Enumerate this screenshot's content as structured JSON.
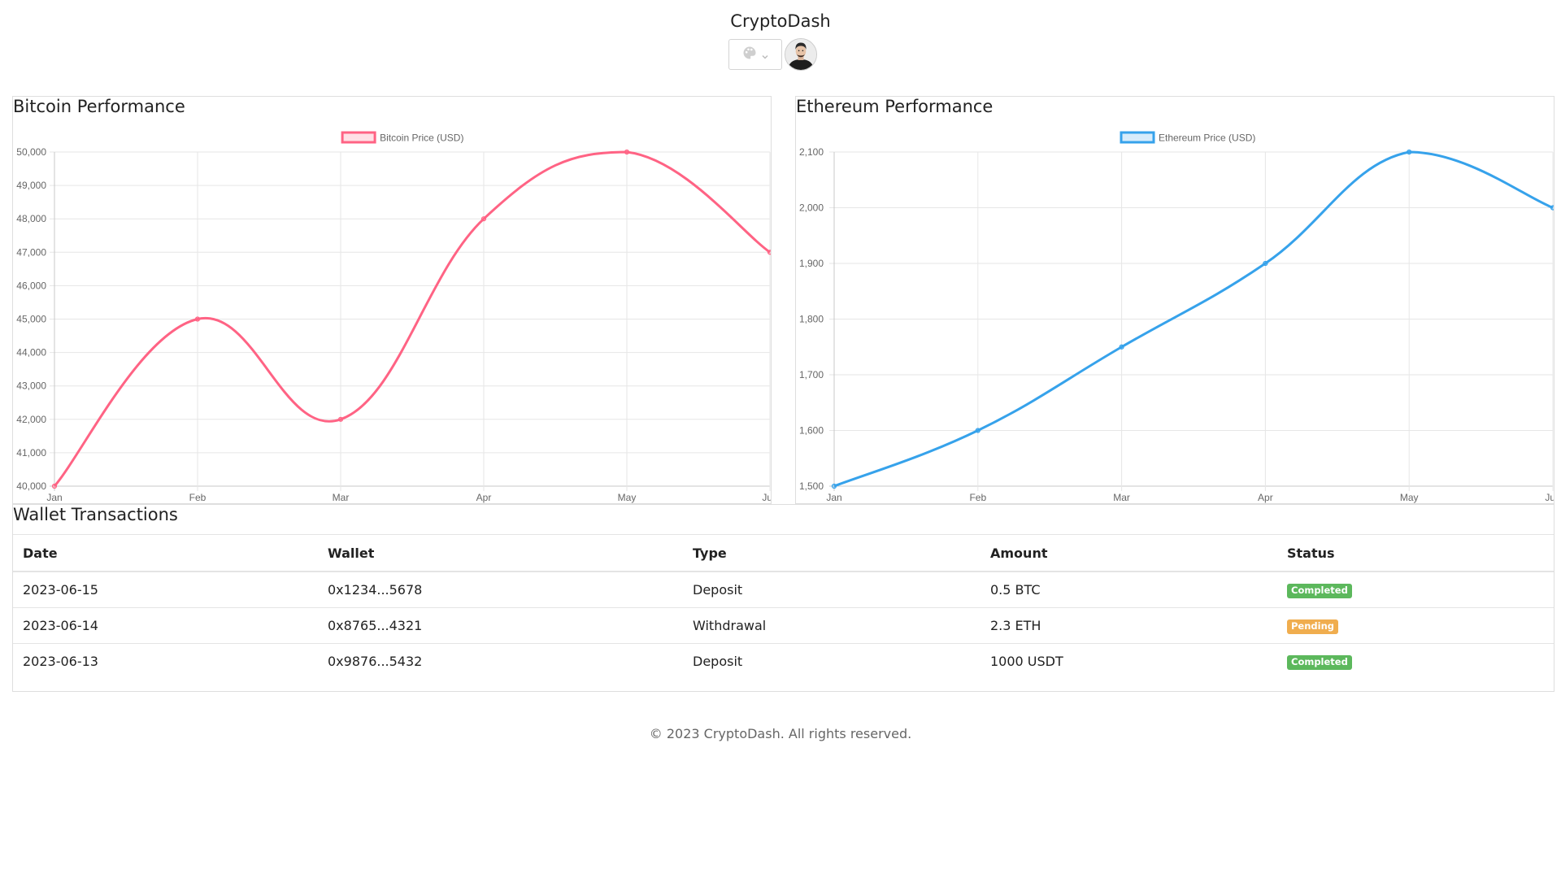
{
  "header": {
    "title": "CryptoDash",
    "theme_icon": "palette-icon",
    "dropdown_icon": "chevron-down-icon"
  },
  "bitcoin": {
    "title": "Bitcoin Performance",
    "color": "#ff6384",
    "chart_data": {
      "type": "line",
      "categories": [
        "Jan",
        "Feb",
        "Mar",
        "Apr",
        "May",
        "Jun"
      ],
      "series": [
        {
          "name": "Bitcoin Price (USD)",
          "values": [
            40000,
            45000,
            42000,
            48000,
            50000,
            47000
          ]
        }
      ],
      "ylim": [
        40000,
        50000
      ],
      "yticks": [
        "40,000",
        "41,000",
        "42,000",
        "43,000",
        "44,000",
        "45,000",
        "46,000",
        "47,000",
        "48,000",
        "49,000",
        "50,000"
      ],
      "grid": true,
      "legend": "top"
    }
  },
  "ethereum": {
    "title": "Ethereum Performance",
    "color": "#36a2eb",
    "chart_data": {
      "type": "line",
      "categories": [
        "Jan",
        "Feb",
        "Mar",
        "Apr",
        "May",
        "Jun"
      ],
      "series": [
        {
          "name": "Ethereum Price (USD)",
          "values": [
            1500,
            1600,
            1750,
            1900,
            2100,
            2000
          ]
        }
      ],
      "ylim": [
        1500,
        2100
      ],
      "yticks": [
        "1,500",
        "1,600",
        "1,700",
        "1,800",
        "1,900",
        "2,000",
        "2,100"
      ],
      "grid": true,
      "legend": "top"
    }
  },
  "transactions": {
    "title": "Wallet Transactions",
    "columns": [
      "Date",
      "Wallet",
      "Type",
      "Amount",
      "Status"
    ],
    "rows": [
      {
        "date": "2023-06-15",
        "wallet": "0x1234...5678",
        "type": "Deposit",
        "amount": "0.5 BTC",
        "status": "Completed",
        "status_color": "#5cb85c"
      },
      {
        "date": "2023-06-14",
        "wallet": "0x8765...4321",
        "type": "Withdrawal",
        "amount": "2.3 ETH",
        "status": "Pending",
        "status_color": "#f0ad4e"
      },
      {
        "date": "2023-06-13",
        "wallet": "0x9876...5432",
        "type": "Deposit",
        "amount": "1000 USDT",
        "status": "Completed",
        "status_color": "#5cb85c"
      }
    ]
  },
  "footer": {
    "text": "© 2023 CryptoDash. All rights reserved."
  }
}
